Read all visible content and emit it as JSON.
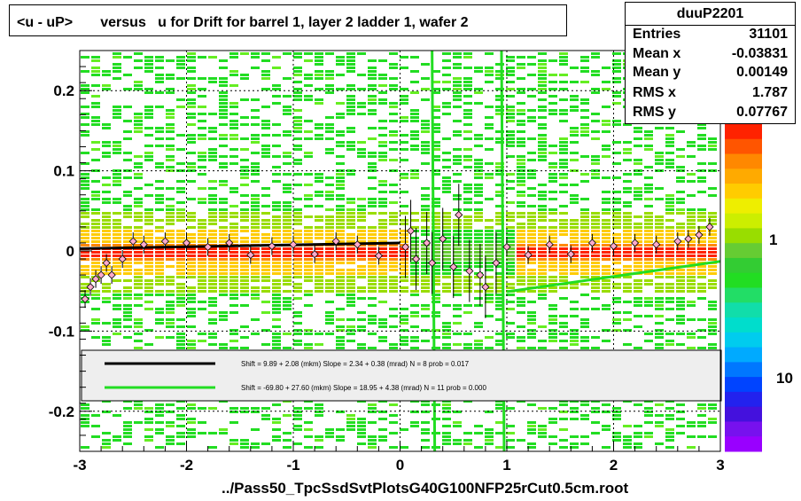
{
  "title": "<u - uP>       versus   u for Drift for barrel 1, layer 2 ladder 1, wafer 2",
  "stats": {
    "name": "duuP2201",
    "rows": [
      {
        "key": "Entries",
        "value": "31101"
      },
      {
        "key": "Mean x",
        "value": "-0.03831"
      },
      {
        "key": "Mean y",
        "value": "0.00149"
      },
      {
        "key": "RMS x",
        "value": "1.787"
      },
      {
        "key": "RMS y",
        "value": "0.07767"
      }
    ]
  },
  "footer": "../Pass50_TpcSsdSvtPlotsG40G100NFP25rCut0.5cm.root",
  "legend": {
    "line1": {
      "color": "#000000",
      "text": "Shift =     9.89 + 2.08 (mkm) Slope =     2.34 + 0.38 (mrad)  N = 8 prob = 0.017"
    },
    "line2": {
      "color": "#22dd22",
      "text": "Shift =   -69.80 + 27.60 (mkm) Slope =    18.95 + 4.38 (mrad)  N = 11 prob = 0.000"
    }
  },
  "colorbar_labels": [
    "1",
    "10"
  ],
  "chart_data": {
    "type": "heatmap",
    "title": "<u - uP>       versus   u for Drift for barrel 1, layer 2 ladder 1, wafer 2",
    "xlim": [
      -3,
      3
    ],
    "ylim": [
      -0.25,
      0.25
    ],
    "x_ticks": [
      "-3",
      "-2",
      "-1",
      "0",
      "1",
      "2",
      "3"
    ],
    "y_ticks": [
      "-0.2",
      "-0.1",
      "0",
      "0.1",
      "0.2"
    ],
    "grid": true,
    "profile_points": [
      {
        "x": -2.95,
        "y": -0.06
      },
      {
        "x": -2.9,
        "y": -0.045
      },
      {
        "x": -2.85,
        "y": -0.035
      },
      {
        "x": -2.8,
        "y": -0.03
      },
      {
        "x": -2.75,
        "y": -0.015
      },
      {
        "x": -2.7,
        "y": -0.03
      },
      {
        "x": -2.6,
        "y": -0.01
      },
      {
        "x": -2.5,
        "y": 0.012
      },
      {
        "x": -2.4,
        "y": 0.008
      },
      {
        "x": -2.2,
        "y": 0.012
      },
      {
        "x": -2.0,
        "y": 0.01
      },
      {
        "x": -1.8,
        "y": 0.005
      },
      {
        "x": -1.6,
        "y": 0.01
      },
      {
        "x": -1.4,
        "y": -0.005
      },
      {
        "x": -1.2,
        "y": 0.006
      },
      {
        "x": -1.0,
        "y": 0.008
      },
      {
        "x": -0.8,
        "y": -0.004
      },
      {
        "x": -0.6,
        "y": 0.012
      },
      {
        "x": -0.4,
        "y": 0.008
      },
      {
        "x": -0.2,
        "y": -0.006
      },
      {
        "x": 0.05,
        "y": 0.005
      },
      {
        "x": 0.1,
        "y": 0.025
      },
      {
        "x": 0.15,
        "y": -0.01
      },
      {
        "x": 0.25,
        "y": 0.01
      },
      {
        "x": 0.3,
        "y": -0.015
      },
      {
        "x": 0.4,
        "y": 0.015
      },
      {
        "x": 0.5,
        "y": -0.02
      },
      {
        "x": 0.55,
        "y": 0.045
      },
      {
        "x": 0.65,
        "y": -0.025
      },
      {
        "x": 0.75,
        "y": -0.03
      },
      {
        "x": 0.8,
        "y": -0.045
      },
      {
        "x": 0.9,
        "y": -0.015
      },
      {
        "x": 1.0,
        "y": 0.005
      },
      {
        "x": 1.2,
        "y": -0.005
      },
      {
        "x": 1.4,
        "y": 0.008
      },
      {
        "x": 1.6,
        "y": -0.004
      },
      {
        "x": 1.8,
        "y": 0.01
      },
      {
        "x": 2.0,
        "y": 0.006
      },
      {
        "x": 2.2,
        "y": 0.01
      },
      {
        "x": 2.4,
        "y": 0.008
      },
      {
        "x": 2.6,
        "y": 0.012
      },
      {
        "x": 2.7,
        "y": 0.015
      },
      {
        "x": 2.8,
        "y": 0.02
      },
      {
        "x": 2.9,
        "y": 0.03
      }
    ],
    "fit_black": {
      "x_range": [
        -3,
        0
      ],
      "shift_um": 9.89,
      "slope_mrad": 2.34
    },
    "fit_green": {
      "x_range": [
        1.0,
        3.0
      ],
      "shift_um": -69.8,
      "slope_mrad": 18.95
    }
  },
  "colors": {
    "frame": "#000000",
    "heat_low": "#22dd22",
    "heat_mid": "#ffaa00",
    "heat_high": "#ff2200",
    "legend_bg": "#eeeeee"
  }
}
